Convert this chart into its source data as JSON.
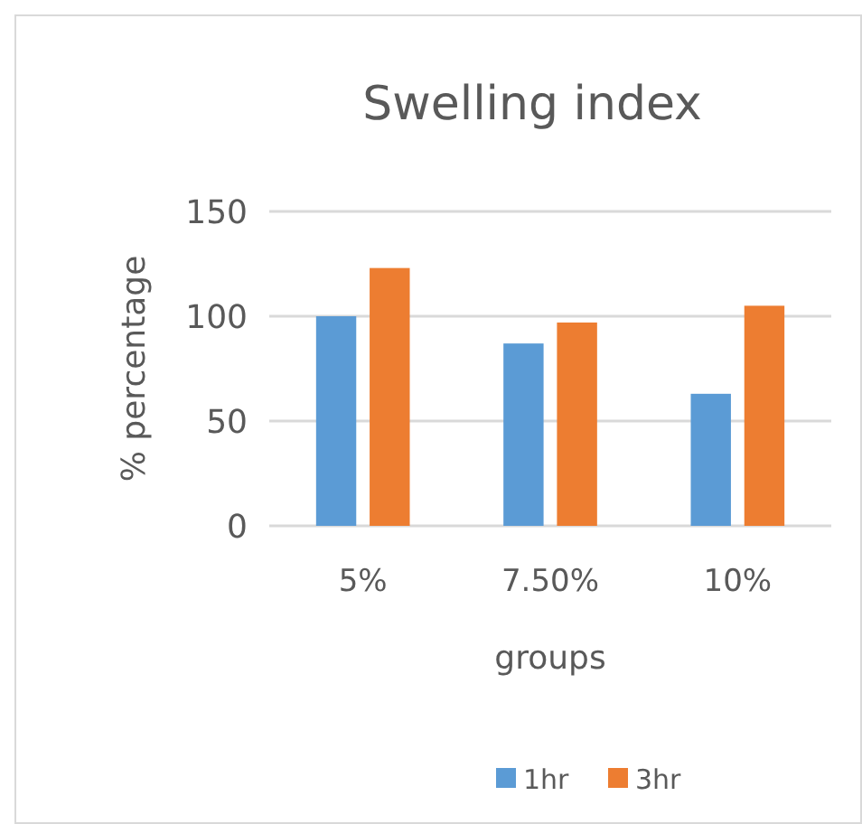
{
  "chart_data": {
    "type": "bar",
    "title": "Swelling index",
    "xlabel": "groups",
    "ylabel": "% percentage",
    "categories": [
      "5%",
      "7.50%",
      "10%"
    ],
    "series": [
      {
        "name": "1hr",
        "color": "#5b9bd5",
        "values": [
          100,
          87,
          63
        ]
      },
      {
        "name": "3hr",
        "color": "#ed7d31",
        "values": [
          123,
          97,
          105
        ]
      }
    ],
    "ylim": [
      0,
      150
    ],
    "yticks": [
      0,
      50,
      100,
      150
    ],
    "grid": "y",
    "legend": "bottom"
  }
}
